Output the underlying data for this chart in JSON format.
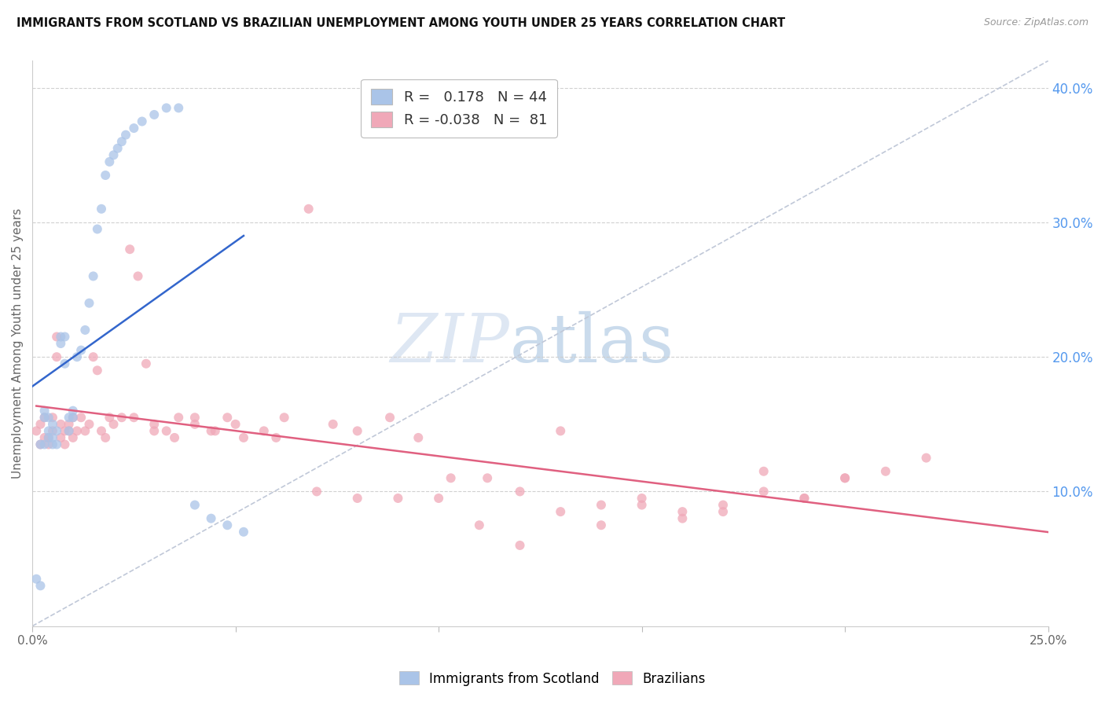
{
  "title": "IMMIGRANTS FROM SCOTLAND VS BRAZILIAN UNEMPLOYMENT AMONG YOUTH UNDER 25 YEARS CORRELATION CHART",
  "source": "Source: ZipAtlas.com",
  "ylabel_left": "Unemployment Among Youth under 25 years",
  "xlim": [
    0.0,
    0.25
  ],
  "ylim": [
    0.0,
    0.42
  ],
  "right_yticks": [
    0.1,
    0.2,
    0.3,
    0.4
  ],
  "right_yticklabels": [
    "10.0%",
    "20.0%",
    "30.0%",
    "40.0%"
  ],
  "bottom_xticks": [
    0.0,
    0.05,
    0.1,
    0.15,
    0.2,
    0.25
  ],
  "bottom_xticklabels": [
    "0.0%",
    "",
    "",
    "",
    "",
    "25.0%"
  ],
  "watermark_zip": "ZIP",
  "watermark_atlas": "atlas",
  "scotland_R": 0.178,
  "scotland_N": 44,
  "brazil_R": -0.038,
  "brazil_N": 81,
  "scotland_color": "#aac4e8",
  "brazil_color": "#f0a8b8",
  "scotland_line_color": "#3366cc",
  "brazil_line_color": "#e06080",
  "ref_line_color": "#c0c8d8",
  "scatter_alpha": 0.75,
  "scatter_size": 75,
  "scotland_x": [
    0.001,
    0.002,
    0.002,
    0.003,
    0.003,
    0.003,
    0.004,
    0.004,
    0.004,
    0.005,
    0.005,
    0.005,
    0.006,
    0.006,
    0.007,
    0.007,
    0.008,
    0.008,
    0.009,
    0.009,
    0.01,
    0.01,
    0.011,
    0.012,
    0.013,
    0.014,
    0.015,
    0.016,
    0.017,
    0.018,
    0.019,
    0.02,
    0.021,
    0.022,
    0.023,
    0.025,
    0.027,
    0.03,
    0.033,
    0.036,
    0.04,
    0.044,
    0.048,
    0.052
  ],
  "scotland_y": [
    0.035,
    0.03,
    0.135,
    0.135,
    0.155,
    0.16,
    0.14,
    0.145,
    0.155,
    0.135,
    0.14,
    0.15,
    0.135,
    0.145,
    0.21,
    0.215,
    0.215,
    0.195,
    0.145,
    0.155,
    0.155,
    0.16,
    0.2,
    0.205,
    0.22,
    0.24,
    0.26,
    0.295,
    0.31,
    0.335,
    0.345,
    0.35,
    0.355,
    0.36,
    0.365,
    0.37,
    0.375,
    0.38,
    0.385,
    0.385,
    0.09,
    0.08,
    0.075,
    0.07
  ],
  "brazil_x": [
    0.001,
    0.002,
    0.002,
    0.003,
    0.003,
    0.004,
    0.004,
    0.005,
    0.005,
    0.006,
    0.006,
    0.007,
    0.007,
    0.008,
    0.008,
    0.009,
    0.009,
    0.01,
    0.01,
    0.011,
    0.012,
    0.013,
    0.014,
    0.015,
    0.016,
    0.017,
    0.018,
    0.019,
    0.02,
    0.022,
    0.024,
    0.026,
    0.028,
    0.03,
    0.033,
    0.036,
    0.04,
    0.044,
    0.048,
    0.052,
    0.057,
    0.062,
    0.068,
    0.074,
    0.08,
    0.088,
    0.095,
    0.103,
    0.112,
    0.12,
    0.13,
    0.14,
    0.15,
    0.16,
    0.17,
    0.18,
    0.19,
    0.2,
    0.21,
    0.22,
    0.025,
    0.03,
    0.035,
    0.04,
    0.045,
    0.05,
    0.06,
    0.07,
    0.08,
    0.09,
    0.1,
    0.11,
    0.12,
    0.13,
    0.14,
    0.15,
    0.16,
    0.17,
    0.18,
    0.19,
    0.2
  ],
  "brazil_y": [
    0.145,
    0.135,
    0.15,
    0.14,
    0.155,
    0.135,
    0.14,
    0.145,
    0.155,
    0.2,
    0.215,
    0.15,
    0.14,
    0.145,
    0.135,
    0.15,
    0.145,
    0.14,
    0.155,
    0.145,
    0.155,
    0.145,
    0.15,
    0.2,
    0.19,
    0.145,
    0.14,
    0.155,
    0.15,
    0.155,
    0.28,
    0.26,
    0.195,
    0.15,
    0.145,
    0.155,
    0.15,
    0.145,
    0.155,
    0.14,
    0.145,
    0.155,
    0.31,
    0.15,
    0.145,
    0.155,
    0.14,
    0.11,
    0.11,
    0.1,
    0.145,
    0.09,
    0.095,
    0.085,
    0.09,
    0.1,
    0.095,
    0.11,
    0.115,
    0.125,
    0.155,
    0.145,
    0.14,
    0.155,
    0.145,
    0.15,
    0.14,
    0.1,
    0.095,
    0.095,
    0.095,
    0.075,
    0.06,
    0.085,
    0.075,
    0.09,
    0.08,
    0.085,
    0.115,
    0.095,
    0.11
  ]
}
